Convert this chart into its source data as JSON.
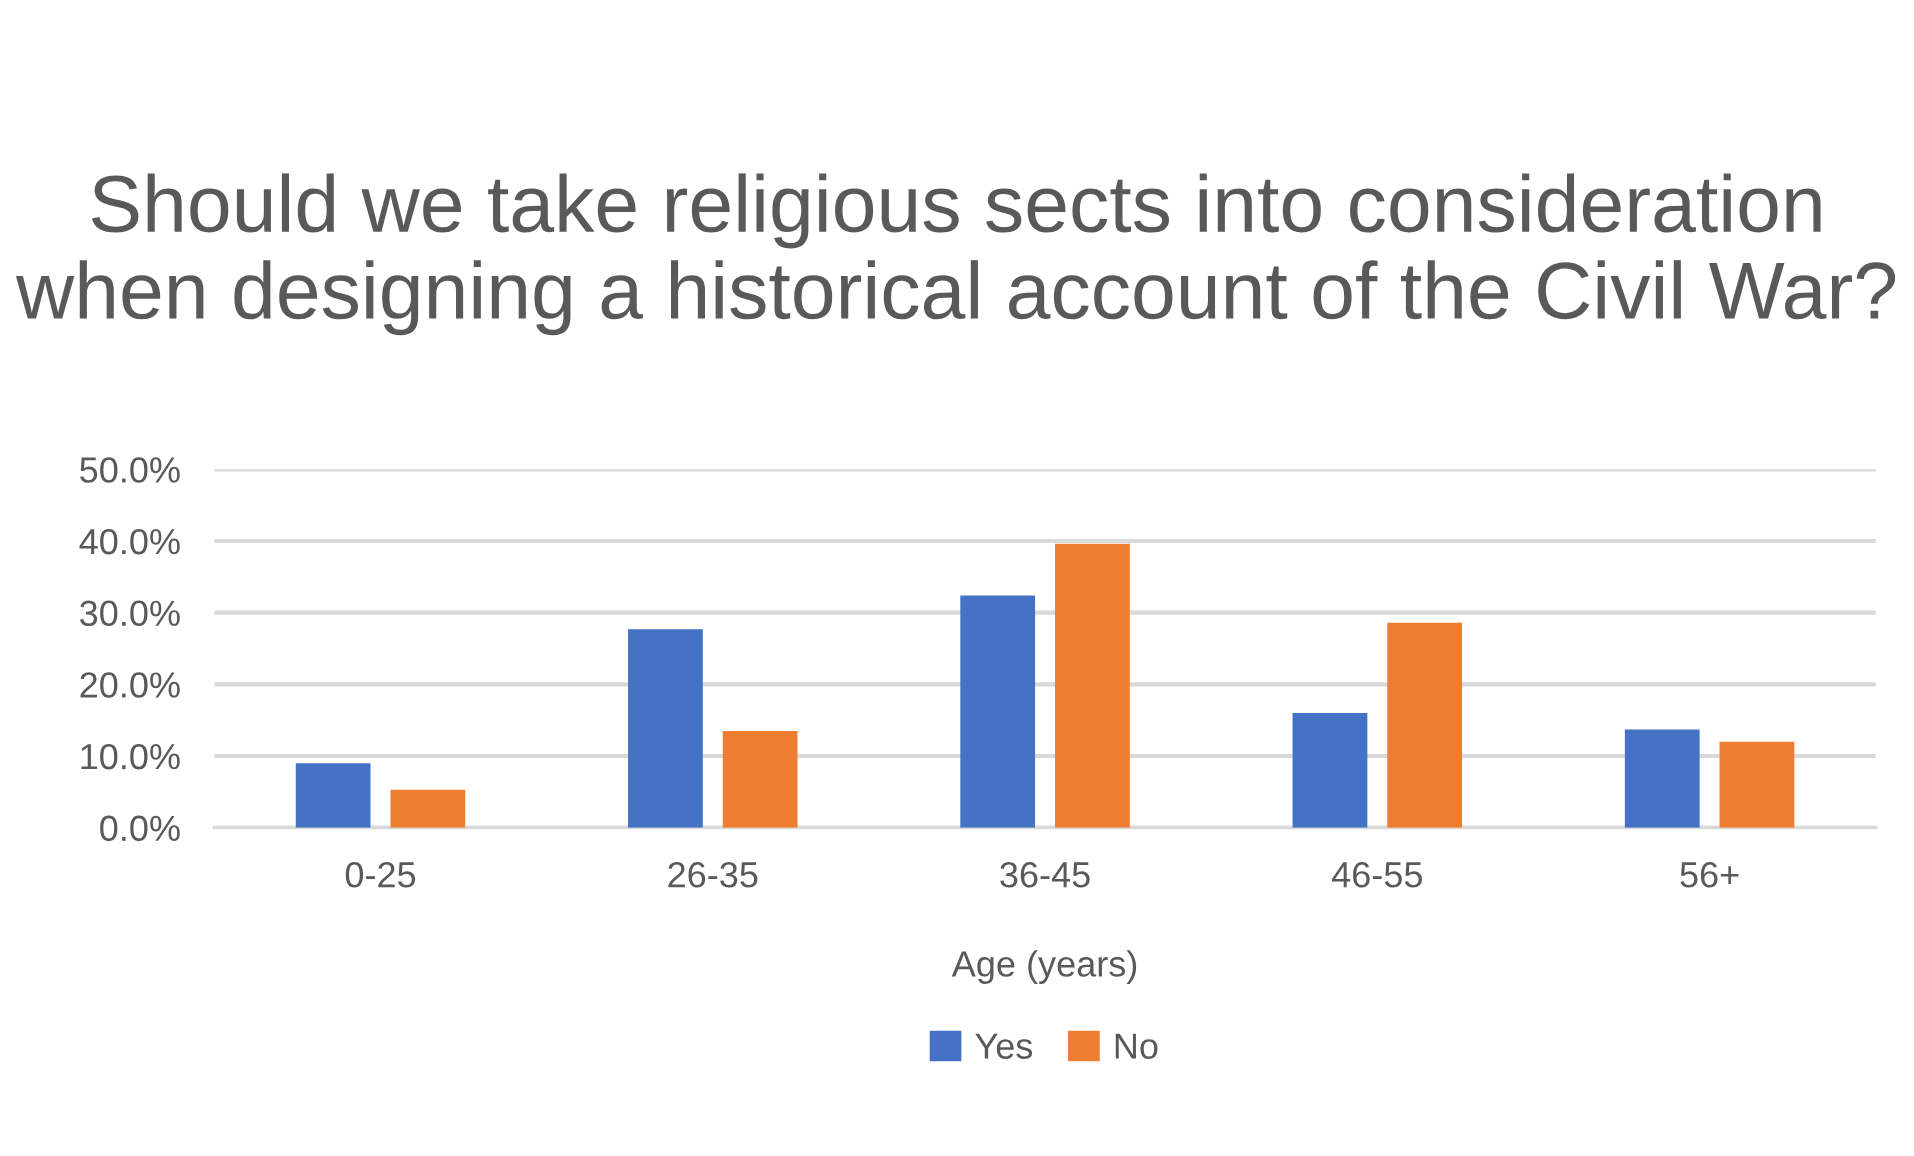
{
  "chart_data": {
    "type": "bar",
    "title": "Should we take religious sects into consideration when designing a historical account of the Civil War?",
    "xlabel": "Age (years)",
    "categories": [
      "0-25",
      "26-35",
      "36-45",
      "46-55",
      "56+"
    ],
    "series": [
      {
        "name": "Yes",
        "color": "#4472c4",
        "values": [
          9.0,
          27.7,
          32.4,
          16.0,
          13.7
        ]
      },
      {
        "name": "No",
        "color": "#ed7d31",
        "values": [
          5.3,
          13.5,
          39.6,
          28.6,
          12.0
        ]
      }
    ],
    "ylim": [
      0,
      50
    ],
    "yticks": [
      {
        "value": 0,
        "label": "0.0%"
      },
      {
        "value": 10,
        "label": "10.0%"
      },
      {
        "value": 20,
        "label": "20.0%"
      },
      {
        "value": 30,
        "label": "30.0%"
      },
      {
        "value": 40,
        "label": "40.0%"
      },
      {
        "value": 50,
        "label": "50.0%"
      }
    ],
    "grid": "y",
    "legend": "bottom"
  }
}
